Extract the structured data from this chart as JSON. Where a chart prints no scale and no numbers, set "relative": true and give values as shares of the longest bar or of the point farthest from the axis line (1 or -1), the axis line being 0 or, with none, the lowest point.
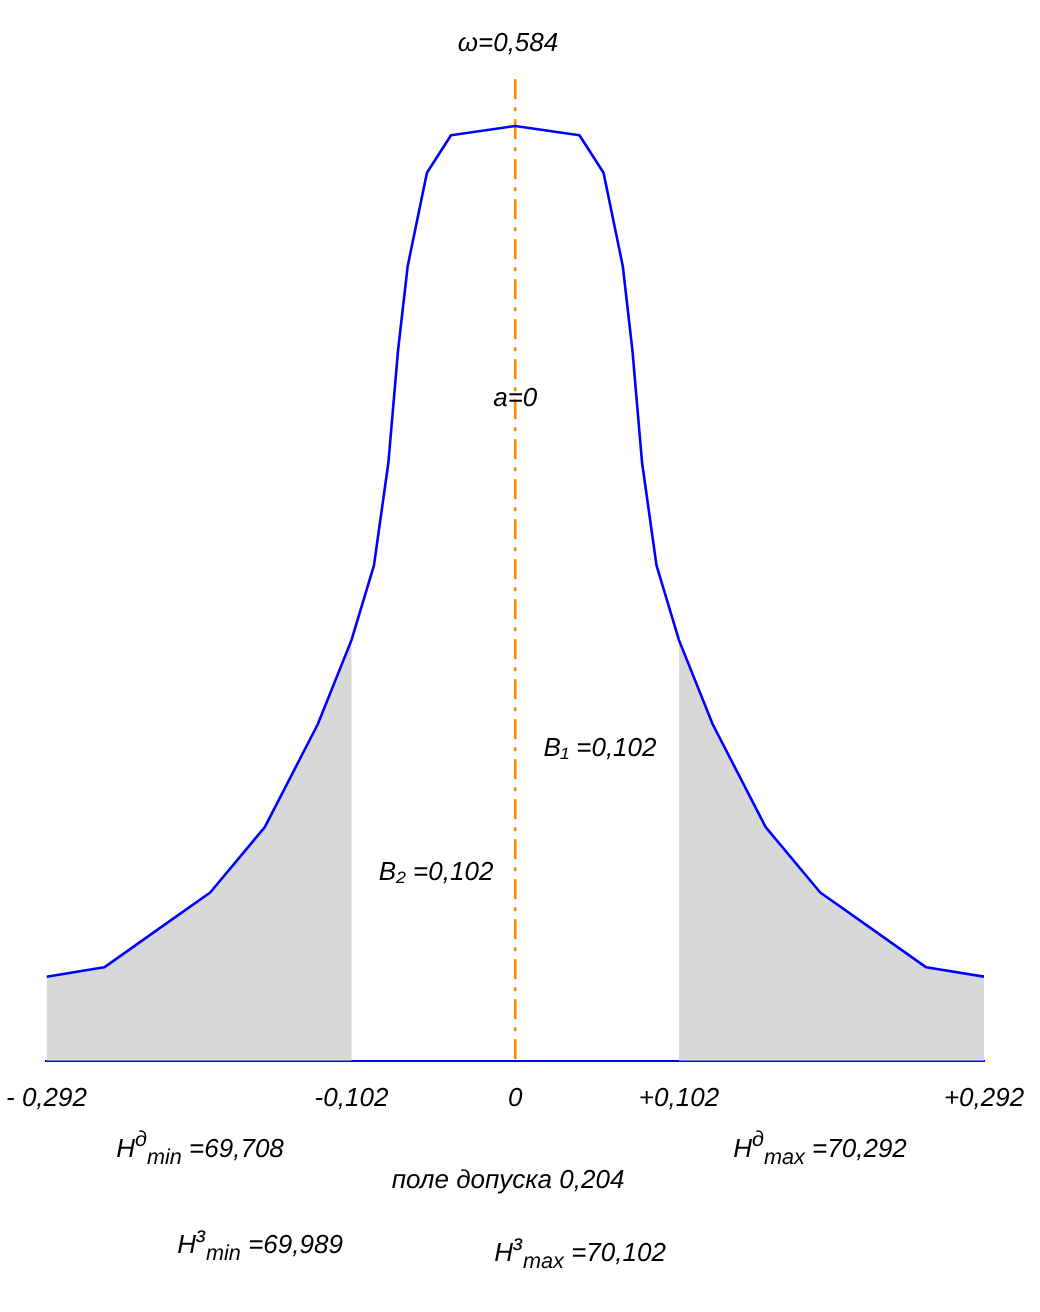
{
  "chart_data": {
    "type": "line",
    "title": "ω=0,584",
    "relative": true,
    "x": [
      -0.292,
      -0.256,
      -0.223,
      -0.19,
      -0.156,
      -0.123,
      -0.102,
      -0.088,
      -0.079,
      -0.073,
      -0.067,
      -0.055,
      -0.04,
      0,
      0.04,
      0.055,
      0.067,
      0.073,
      0.079,
      0.088,
      0.102,
      0.123,
      0.156,
      0.19,
      0.223,
      0.256,
      0.292
    ],
    "series": [
      {
        "color": "#0000ff",
        "values": [
          0.09,
          0.1,
          0.14,
          0.18,
          0.25,
          0.36,
          0.45,
          0.53,
          0.64,
          0.76,
          0.85,
          0.95,
          0.99,
          1,
          0.99,
          0.95,
          0.85,
          0.76,
          0.64,
          0.53,
          0.45,
          0.36,
          0.25,
          0.18,
          0.14,
          0.1,
          0.09
        ]
      }
    ],
    "xlim": [
      -0.292,
      0.292
    ],
    "xticks": [
      {
        "value": -0.292,
        "label": "- 0,292"
      },
      {
        "value": -0.102,
        "label": "-0,102"
      },
      {
        "value": 0,
        "label": "0"
      },
      {
        "value": 0.102,
        "label": "+0,102"
      },
      {
        "value": 0.292,
        "label": "+0,292"
      }
    ],
    "ref_lines": [
      {
        "axis": "x",
        "value": 0,
        "color": "#ff8c00",
        "line_style": "dashed"
      }
    ],
    "bands": [
      {
        "axis": "x",
        "from": -0.292,
        "to": -0.102,
        "color": "#d8d8d8"
      },
      {
        "axis": "x",
        "from": 0.102,
        "to": 0.292,
        "color": "#d8d8d8"
      }
    ],
    "annotations": [
      {
        "text": "a=0",
        "x": 0,
        "y": 0.7
      },
      "B₁ =0,102",
      "B₂ =0,102",
      "H$^{д}$$_{min}$ =69,708",
      "поле допуска 0,204",
      "H$^{д}$$_{max}$ =70,292",
      "H$^{з}$$_{min}$ =69,989",
      "H$^{з}$$_{max}$ =70,102"
    ],
    "grid": false,
    "legend": false,
    "marker": "none",
    "line_style": "solid"
  }
}
